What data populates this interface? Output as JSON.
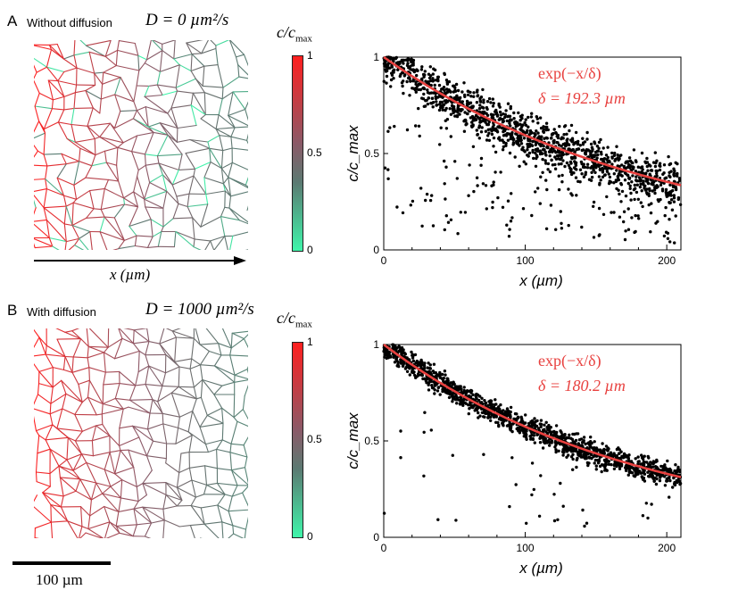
{
  "panels": [
    {
      "letter": "A",
      "title": "Without diffusion",
      "diffusion_eq": "D = 0 µm²/s",
      "colorbar_label": "c/c",
      "colorbar_sub": "max",
      "colorbar_ticks": [
        "1",
        "0.5",
        "0"
      ],
      "axis_arrow_label": "x  (µm)",
      "fit_formula": "exp(−x/δ)",
      "fit_delta": "δ  =  192.3 µm"
    },
    {
      "letter": "B",
      "title": "With diffusion",
      "diffusion_eq": "D = 1000 µm²/s",
      "colorbar_label": "c/c",
      "colorbar_sub": "max",
      "colorbar_ticks": [
        "1",
        "0.5",
        "0"
      ],
      "fit_formula": "exp(−x/δ)",
      "fit_delta": "δ  =  180.2 µm"
    }
  ],
  "scale_bar_label": "100 µm",
  "colors": {
    "fit": "#e8413f",
    "high": "#ff2a2a",
    "mid": "#7a6a70",
    "low": "#44f0a8"
  },
  "chart_data": [
    {
      "type": "scatter",
      "title": "",
      "xlabel": "x  (µm)",
      "ylabel": "c/c_max",
      "xlim": [
        0,
        210
      ],
      "ylim": [
        0,
        1
      ],
      "x_ticks": [
        "0",
        "100",
        "200"
      ],
      "y_ticks": [
        "0",
        "0.5",
        "1"
      ],
      "delta": 192.3,
      "spread": 0.09,
      "outlier_rate": 0.12,
      "series": [
        {
          "name": "fit exp(-x/δ)",
          "delta": 192.3
        }
      ]
    },
    {
      "type": "scatter",
      "title": "",
      "xlabel": "x  (µm)",
      "ylabel": "c/c_max",
      "xlim": [
        0,
        210
      ],
      "ylim": [
        0,
        1
      ],
      "x_ticks": [
        "0",
        "100",
        "200"
      ],
      "y_ticks": [
        "0",
        "0.5",
        "1"
      ],
      "delta": 180.2,
      "spread": 0.05,
      "outlier_rate": 0.03,
      "series": [
        {
          "name": "fit exp(-x/δ)",
          "delta": 180.2
        }
      ]
    }
  ]
}
